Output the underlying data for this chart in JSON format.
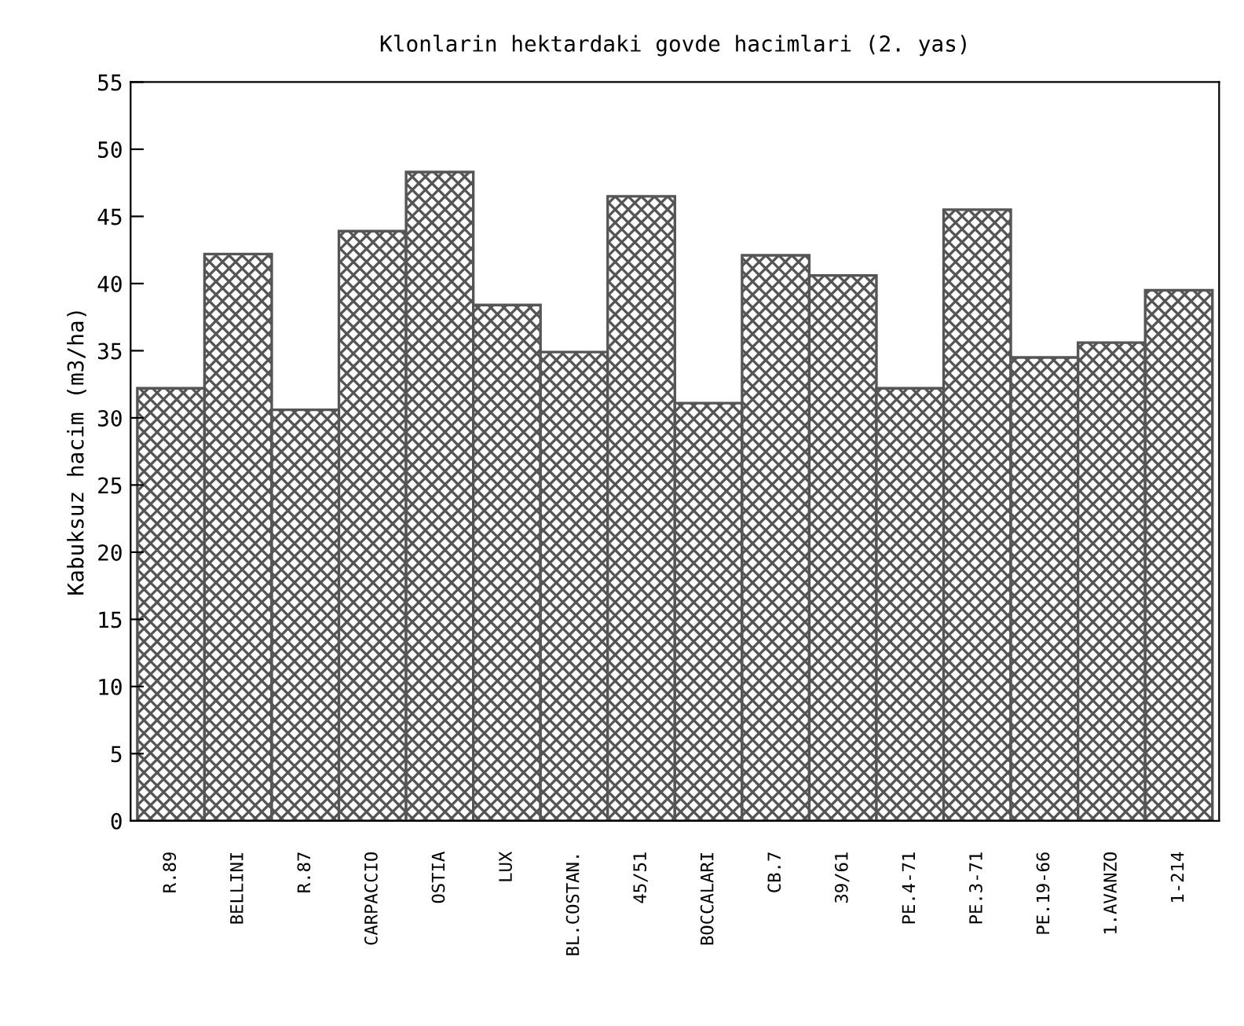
{
  "chart_data": {
    "type": "bar",
    "title": "Klonlarin hektardaki govde hacimlari (2. yas)",
    "ylabel": "Kabuksuz hacim (m3/ha)",
    "categories": [
      "R.89",
      "BELLINI",
      "R.87",
      "CARPACCIO",
      "OSTIA",
      "LUX",
      "BL.COSTAN.",
      "45/51",
      "BOCCALARI",
      "CB.7",
      "39/61",
      "PE.4-71",
      "PE.3-71",
      "PE.19-66",
      "1.AVANZO",
      "1-214"
    ],
    "values": [
      32.2,
      42.2,
      30.6,
      43.9,
      48.3,
      38.4,
      34.9,
      46.5,
      31.1,
      42.1,
      40.6,
      32.2,
      45.5,
      34.5,
      35.6,
      39.5
    ],
    "color": "#555555",
    "ylim": [
      0,
      55
    ],
    "yticks": [
      0,
      5,
      10,
      15,
      20,
      25,
      30,
      35,
      40,
      45,
      50,
      55
    ],
    "grid": false,
    "legend": false
  }
}
